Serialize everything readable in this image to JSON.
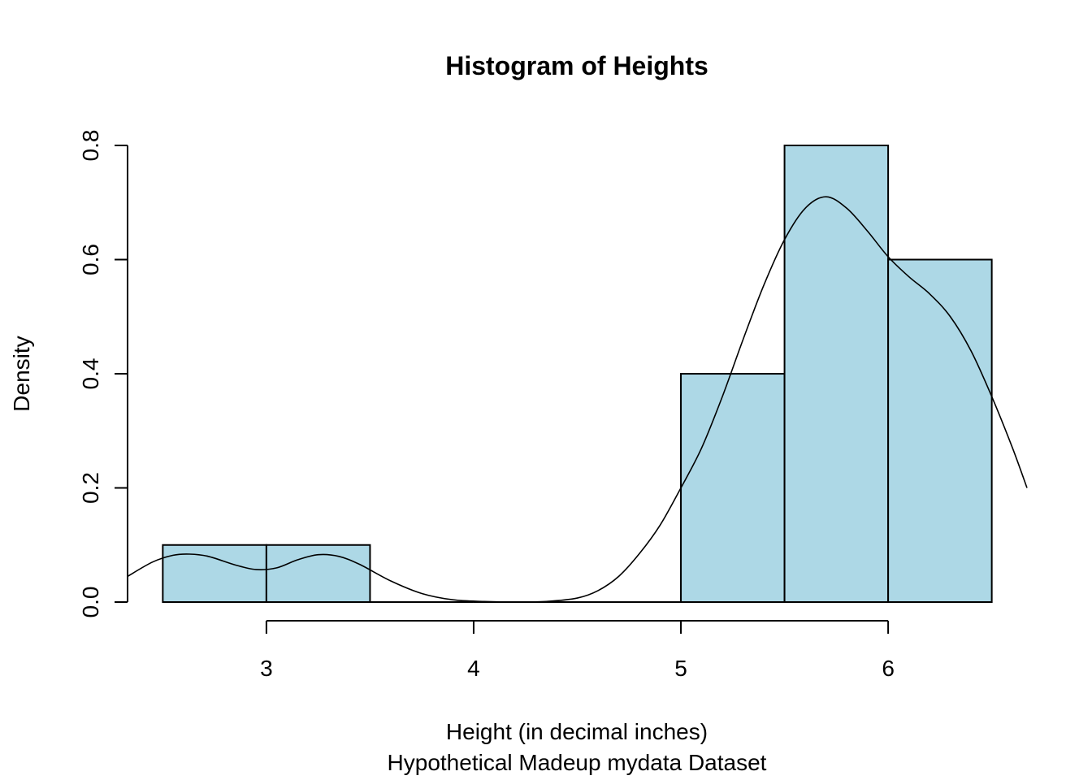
{
  "chart_data": {
    "type": "histogram",
    "title": "Histogram of Heights",
    "xlabel": "Height (in decimal inches)",
    "xlabel_sub": "Hypothetical Madeup mydata Dataset",
    "ylabel": "Density",
    "xlim": [
      2.33,
      6.67
    ],
    "ylim": [
      0,
      0.8
    ],
    "bar_color": "#ADD8E6",
    "x_ticks": [
      3,
      4,
      5,
      6
    ],
    "y_ticks": [
      0.0,
      0.2,
      0.4,
      0.6,
      0.8
    ],
    "x_tick_labels": [
      "3",
      "4",
      "5",
      "6"
    ],
    "y_tick_labels": [
      "0.0",
      "0.2",
      "0.4",
      "0.6",
      "0.8"
    ],
    "bins": [
      {
        "from": 2.5,
        "to": 3.0,
        "density": 0.1
      },
      {
        "from": 3.0,
        "to": 3.5,
        "density": 0.1
      },
      {
        "from": 3.5,
        "to": 4.0,
        "density": 0.0
      },
      {
        "from": 4.0,
        "to": 4.5,
        "density": 0.0
      },
      {
        "from": 4.5,
        "to": 5.0,
        "density": 0.0
      },
      {
        "from": 5.0,
        "to": 5.5,
        "density": 0.4
      },
      {
        "from": 5.5,
        "to": 6.0,
        "density": 0.8
      },
      {
        "from": 6.0,
        "to": 6.5,
        "density": 0.6
      }
    ],
    "density_curve": {
      "x": [
        2.33,
        2.45,
        2.55,
        2.63,
        2.72,
        2.85,
        2.95,
        3.05,
        3.15,
        3.25,
        3.35,
        3.45,
        3.6,
        3.75,
        3.9,
        4.05,
        4.2,
        4.35,
        4.5,
        4.6,
        4.7,
        4.8,
        4.9,
        5.0,
        5.1,
        5.2,
        5.3,
        5.4,
        5.5,
        5.6,
        5.7,
        5.8,
        5.9,
        6.0,
        6.1,
        6.2,
        6.3,
        6.4,
        6.5,
        6.6,
        6.67
      ],
      "y": [
        0.045,
        0.07,
        0.082,
        0.084,
        0.08,
        0.065,
        0.057,
        0.06,
        0.074,
        0.083,
        0.08,
        0.066,
        0.037,
        0.015,
        0.004,
        0.001,
        0.0,
        0.001,
        0.007,
        0.02,
        0.045,
        0.085,
        0.135,
        0.2,
        0.27,
        0.36,
        0.46,
        0.555,
        0.635,
        0.69,
        0.71,
        0.69,
        0.65,
        0.605,
        0.57,
        0.54,
        0.5,
        0.44,
        0.36,
        0.27,
        0.2
      ]
    }
  }
}
